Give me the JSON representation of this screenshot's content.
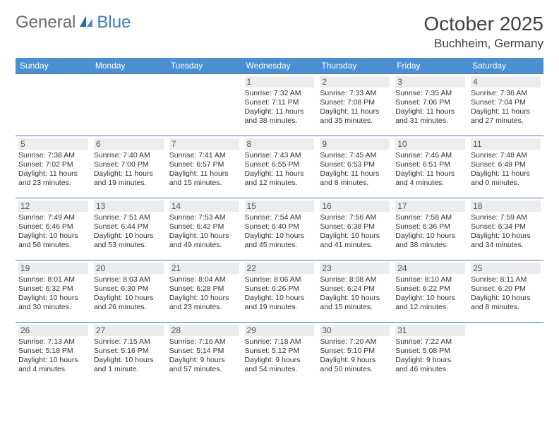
{
  "brand": {
    "part1": "General",
    "part2": "Blue"
  },
  "title": "October 2025",
  "location": "Buchheim, Germany",
  "colors": {
    "header_bg": "#4a8fd1",
    "header_text": "#ffffff",
    "border": "#4a7bb0",
    "daynum_bg": "#ececec",
    "logo_gray": "#6a6a6a",
    "logo_blue": "#3b7bbf"
  },
  "day_labels": [
    "Sunday",
    "Monday",
    "Tuesday",
    "Wednesday",
    "Thursday",
    "Friday",
    "Saturday"
  ],
  "weeks": [
    [
      {
        "n": "",
        "sunrise": "",
        "sunset": "",
        "daylight": ""
      },
      {
        "n": "",
        "sunrise": "",
        "sunset": "",
        "daylight": ""
      },
      {
        "n": "",
        "sunrise": "",
        "sunset": "",
        "daylight": ""
      },
      {
        "n": "1",
        "sunrise": "Sunrise: 7:32 AM",
        "sunset": "Sunset: 7:11 PM",
        "daylight": "Daylight: 11 hours and 38 minutes."
      },
      {
        "n": "2",
        "sunrise": "Sunrise: 7:33 AM",
        "sunset": "Sunset: 7:08 PM",
        "daylight": "Daylight: 11 hours and 35 minutes."
      },
      {
        "n": "3",
        "sunrise": "Sunrise: 7:35 AM",
        "sunset": "Sunset: 7:06 PM",
        "daylight": "Daylight: 11 hours and 31 minutes."
      },
      {
        "n": "4",
        "sunrise": "Sunrise: 7:36 AM",
        "sunset": "Sunset: 7:04 PM",
        "daylight": "Daylight: 11 hours and 27 minutes."
      }
    ],
    [
      {
        "n": "5",
        "sunrise": "Sunrise: 7:38 AM",
        "sunset": "Sunset: 7:02 PM",
        "daylight": "Daylight: 11 hours and 23 minutes."
      },
      {
        "n": "6",
        "sunrise": "Sunrise: 7:40 AM",
        "sunset": "Sunset: 7:00 PM",
        "daylight": "Daylight: 11 hours and 19 minutes."
      },
      {
        "n": "7",
        "sunrise": "Sunrise: 7:41 AM",
        "sunset": "Sunset: 6:57 PM",
        "daylight": "Daylight: 11 hours and 15 minutes."
      },
      {
        "n": "8",
        "sunrise": "Sunrise: 7:43 AM",
        "sunset": "Sunset: 6:55 PM",
        "daylight": "Daylight: 11 hours and 12 minutes."
      },
      {
        "n": "9",
        "sunrise": "Sunrise: 7:45 AM",
        "sunset": "Sunset: 6:53 PM",
        "daylight": "Daylight: 11 hours and 8 minutes."
      },
      {
        "n": "10",
        "sunrise": "Sunrise: 7:46 AM",
        "sunset": "Sunset: 6:51 PM",
        "daylight": "Daylight: 11 hours and 4 minutes."
      },
      {
        "n": "11",
        "sunrise": "Sunrise: 7:48 AM",
        "sunset": "Sunset: 6:49 PM",
        "daylight": "Daylight: 11 hours and 0 minutes."
      }
    ],
    [
      {
        "n": "12",
        "sunrise": "Sunrise: 7:49 AM",
        "sunset": "Sunset: 6:46 PM",
        "daylight": "Daylight: 10 hours and 56 minutes."
      },
      {
        "n": "13",
        "sunrise": "Sunrise: 7:51 AM",
        "sunset": "Sunset: 6:44 PM",
        "daylight": "Daylight: 10 hours and 53 minutes."
      },
      {
        "n": "14",
        "sunrise": "Sunrise: 7:53 AM",
        "sunset": "Sunset: 6:42 PM",
        "daylight": "Daylight: 10 hours and 49 minutes."
      },
      {
        "n": "15",
        "sunrise": "Sunrise: 7:54 AM",
        "sunset": "Sunset: 6:40 PM",
        "daylight": "Daylight: 10 hours and 45 minutes."
      },
      {
        "n": "16",
        "sunrise": "Sunrise: 7:56 AM",
        "sunset": "Sunset: 6:38 PM",
        "daylight": "Daylight: 10 hours and 41 minutes."
      },
      {
        "n": "17",
        "sunrise": "Sunrise: 7:58 AM",
        "sunset": "Sunset: 6:36 PM",
        "daylight": "Daylight: 10 hours and 38 minutes."
      },
      {
        "n": "18",
        "sunrise": "Sunrise: 7:59 AM",
        "sunset": "Sunset: 6:34 PM",
        "daylight": "Daylight: 10 hours and 34 minutes."
      }
    ],
    [
      {
        "n": "19",
        "sunrise": "Sunrise: 8:01 AM",
        "sunset": "Sunset: 6:32 PM",
        "daylight": "Daylight: 10 hours and 30 minutes."
      },
      {
        "n": "20",
        "sunrise": "Sunrise: 8:03 AM",
        "sunset": "Sunset: 6:30 PM",
        "daylight": "Daylight: 10 hours and 26 minutes."
      },
      {
        "n": "21",
        "sunrise": "Sunrise: 8:04 AM",
        "sunset": "Sunset: 6:28 PM",
        "daylight": "Daylight: 10 hours and 23 minutes."
      },
      {
        "n": "22",
        "sunrise": "Sunrise: 8:06 AM",
        "sunset": "Sunset: 6:26 PM",
        "daylight": "Daylight: 10 hours and 19 minutes."
      },
      {
        "n": "23",
        "sunrise": "Sunrise: 8:08 AM",
        "sunset": "Sunset: 6:24 PM",
        "daylight": "Daylight: 10 hours and 15 minutes."
      },
      {
        "n": "24",
        "sunrise": "Sunrise: 8:10 AM",
        "sunset": "Sunset: 6:22 PM",
        "daylight": "Daylight: 10 hours and 12 minutes."
      },
      {
        "n": "25",
        "sunrise": "Sunrise: 8:11 AM",
        "sunset": "Sunset: 6:20 PM",
        "daylight": "Daylight: 10 hours and 8 minutes."
      }
    ],
    [
      {
        "n": "26",
        "sunrise": "Sunrise: 7:13 AM",
        "sunset": "Sunset: 5:18 PM",
        "daylight": "Daylight: 10 hours and 4 minutes."
      },
      {
        "n": "27",
        "sunrise": "Sunrise: 7:15 AM",
        "sunset": "Sunset: 5:16 PM",
        "daylight": "Daylight: 10 hours and 1 minute."
      },
      {
        "n": "28",
        "sunrise": "Sunrise: 7:16 AM",
        "sunset": "Sunset: 5:14 PM",
        "daylight": "Daylight: 9 hours and 57 minutes."
      },
      {
        "n": "29",
        "sunrise": "Sunrise: 7:18 AM",
        "sunset": "Sunset: 5:12 PM",
        "daylight": "Daylight: 9 hours and 54 minutes."
      },
      {
        "n": "30",
        "sunrise": "Sunrise: 7:20 AM",
        "sunset": "Sunset: 5:10 PM",
        "daylight": "Daylight: 9 hours and 50 minutes."
      },
      {
        "n": "31",
        "sunrise": "Sunrise: 7:22 AM",
        "sunset": "Sunset: 5:08 PM",
        "daylight": "Daylight: 9 hours and 46 minutes."
      },
      {
        "n": "",
        "sunrise": "",
        "sunset": "",
        "daylight": ""
      }
    ]
  ]
}
